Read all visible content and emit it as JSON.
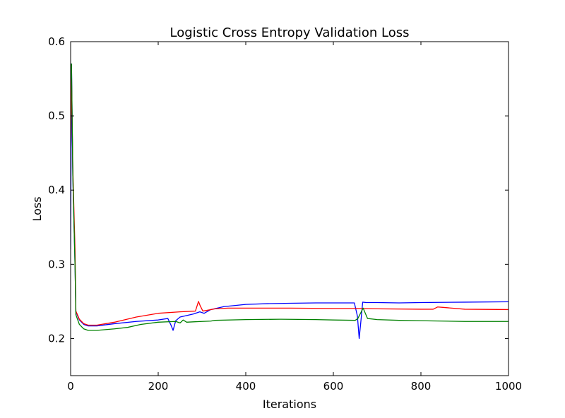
{
  "chart_data": {
    "type": "line",
    "title": "Logistic Cross Entropy Validation Loss",
    "xlabel": "Iterations",
    "ylabel": "Loss",
    "xlim": [
      0,
      1000
    ],
    "ylim": [
      0.15,
      0.6
    ],
    "xticks": [
      0,
      200,
      400,
      600,
      800,
      1000
    ],
    "yticks": [
      0.2,
      0.3,
      0.4,
      0.5,
      0.6
    ],
    "xtick_labels": [
      "0",
      "200",
      "400",
      "600",
      "800",
      "1000"
    ],
    "ytick_labels": [
      "0.2",
      "0.3",
      "0.4",
      "0.5",
      "0.6"
    ],
    "grid": false,
    "series": [
      {
        "color": "#0000ff",
        "points": [
          [
            0,
            0.32
          ],
          [
            2,
            0.57
          ],
          [
            5,
            0.42
          ],
          [
            10,
            0.3
          ],
          [
            12,
            0.236
          ],
          [
            20,
            0.225
          ],
          [
            30,
            0.219
          ],
          [
            40,
            0.217
          ],
          [
            60,
            0.217
          ],
          [
            100,
            0.22
          ],
          [
            150,
            0.223
          ],
          [
            200,
            0.225
          ],
          [
            222,
            0.227
          ],
          [
            230,
            0.217
          ],
          [
            234,
            0.211
          ],
          [
            240,
            0.224
          ],
          [
            250,
            0.229
          ],
          [
            280,
            0.233
          ],
          [
            295,
            0.236
          ],
          [
            305,
            0.234
          ],
          [
            320,
            0.239
          ],
          [
            350,
            0.243
          ],
          [
            400,
            0.246
          ],
          [
            450,
            0.247
          ],
          [
            500,
            0.2475
          ],
          [
            560,
            0.248
          ],
          [
            600,
            0.248
          ],
          [
            648,
            0.248
          ],
          [
            655,
            0.23
          ],
          [
            659,
            0.2
          ],
          [
            664,
            0.23
          ],
          [
            667,
            0.249
          ],
          [
            675,
            0.2485
          ],
          [
            700,
            0.2485
          ],
          [
            750,
            0.248
          ],
          [
            800,
            0.2485
          ],
          [
            900,
            0.249
          ],
          [
            1000,
            0.2495
          ]
        ]
      },
      {
        "color": "#ff0000",
        "points": [
          [
            0,
            0.47
          ],
          [
            2,
            0.55
          ],
          [
            5,
            0.43
          ],
          [
            10,
            0.32
          ],
          [
            12,
            0.237
          ],
          [
            20,
            0.226
          ],
          [
            30,
            0.22
          ],
          [
            40,
            0.218
          ],
          [
            60,
            0.218
          ],
          [
            100,
            0.222
          ],
          [
            150,
            0.229
          ],
          [
            200,
            0.234
          ],
          [
            250,
            0.236
          ],
          [
            285,
            0.237
          ],
          [
            292,
            0.25
          ],
          [
            296,
            0.244
          ],
          [
            302,
            0.237
          ],
          [
            330,
            0.24
          ],
          [
            360,
            0.241
          ],
          [
            400,
            0.241
          ],
          [
            500,
            0.241
          ],
          [
            600,
            0.2405
          ],
          [
            660,
            0.2405
          ],
          [
            700,
            0.24
          ],
          [
            800,
            0.2395
          ],
          [
            828,
            0.2395
          ],
          [
            838,
            0.2425
          ],
          [
            850,
            0.242
          ],
          [
            900,
            0.2395
          ],
          [
            1000,
            0.239
          ]
        ]
      },
      {
        "color": "#008000",
        "points": [
          [
            0,
            0.55
          ],
          [
            2,
            0.57
          ],
          [
            5,
            0.42
          ],
          [
            10,
            0.3
          ],
          [
            12,
            0.232
          ],
          [
            20,
            0.219
          ],
          [
            30,
            0.213
          ],
          [
            40,
            0.211
          ],
          [
            60,
            0.211
          ],
          [
            100,
            0.213
          ],
          [
            130,
            0.215
          ],
          [
            160,
            0.219
          ],
          [
            200,
            0.222
          ],
          [
            240,
            0.223
          ],
          [
            250,
            0.221
          ],
          [
            257,
            0.225
          ],
          [
            265,
            0.222
          ],
          [
            280,
            0.2225
          ],
          [
            300,
            0.223
          ],
          [
            320,
            0.2235
          ],
          [
            330,
            0.2245
          ],
          [
            400,
            0.2255
          ],
          [
            480,
            0.226
          ],
          [
            560,
            0.2255
          ],
          [
            600,
            0.225
          ],
          [
            650,
            0.2245
          ],
          [
            656,
            0.227
          ],
          [
            668,
            0.241
          ],
          [
            678,
            0.227
          ],
          [
            700,
            0.2255
          ],
          [
            750,
            0.2245
          ],
          [
            800,
            0.224
          ],
          [
            900,
            0.223
          ],
          [
            1000,
            0.223
          ]
        ]
      }
    ]
  }
}
